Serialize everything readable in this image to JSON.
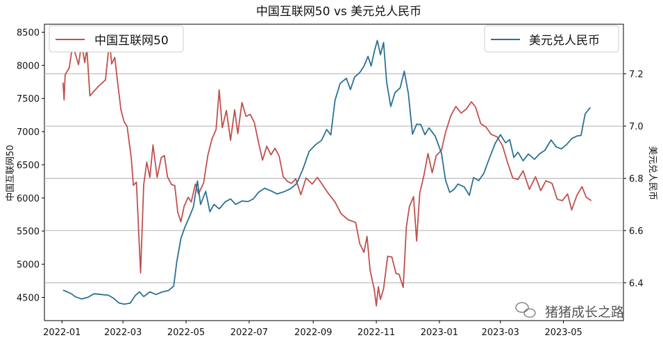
{
  "chart_data": {
    "type": "line",
    "title": "中国互联网50 vs 美元兑人民币",
    "xlabel": "",
    "ylabel_left": "中国互联网50",
    "ylabel_right": "美元兑人民币",
    "x_ticks": [
      "2022-01",
      "2022-03",
      "2022-05",
      "2022-07",
      "2022-09",
      "2022-11",
      "2023-01",
      "2023-03",
      "2023-05"
    ],
    "left_axis": {
      "ylim": [
        4150,
        8620
      ],
      "ticks": [
        4500,
        5000,
        5500,
        6000,
        6500,
        7000,
        7500,
        8000,
        8500
      ]
    },
    "right_axis": {
      "ylim": [
        6.255,
        7.39
      ],
      "ticks": [
        "6.4",
        "6.6",
        "6.8",
        "7.0",
        "7.2"
      ]
    },
    "grid": "horizontal lines at right-axis ticks",
    "legend": {
      "left_series": "top-left",
      "right_series": "top-right"
    },
    "watermark": "猪猪成长之路",
    "series": [
      {
        "name": "中国互联网50",
        "axis": "left",
        "color": "#c0504d",
        "points": [
          [
            "2022-01-02",
            7740
          ],
          [
            "2022-01-03",
            7480
          ],
          [
            "2022-01-04",
            7860
          ],
          [
            "2022-01-08",
            7960
          ],
          [
            "2022-01-11",
            8280
          ],
          [
            "2022-01-14",
            8170
          ],
          [
            "2022-01-17",
            8010
          ],
          [
            "2022-01-20",
            8330
          ],
          [
            "2022-01-23",
            8040
          ],
          [
            "2022-01-25",
            8250
          ],
          [
            "2022-01-28",
            7540
          ],
          [
            "2022-02-05",
            7680
          ],
          [
            "2022-02-12",
            7780
          ],
          [
            "2022-02-16",
            8380
          ],
          [
            "2022-02-18",
            8020
          ],
          [
            "2022-02-21",
            8120
          ],
          [
            "2022-02-24",
            7720
          ],
          [
            "2022-02-27",
            7330
          ],
          [
            "2022-03-02",
            7150
          ],
          [
            "2022-03-05",
            7080
          ],
          [
            "2022-03-09",
            6600
          ],
          [
            "2022-03-11",
            6190
          ],
          [
            "2022-03-14",
            6240
          ],
          [
            "2022-03-18",
            4870
          ],
          [
            "2022-03-21",
            6200
          ],
          [
            "2022-03-24",
            6540
          ],
          [
            "2022-03-27",
            6310
          ],
          [
            "2022-03-30",
            6800
          ],
          [
            "2022-04-03",
            6310
          ],
          [
            "2022-04-07",
            6610
          ],
          [
            "2022-04-10",
            6640
          ],
          [
            "2022-04-13",
            6320
          ],
          [
            "2022-04-17",
            6200
          ],
          [
            "2022-04-20",
            6190
          ],
          [
            "2022-04-23",
            5780
          ],
          [
            "2022-04-26",
            5640
          ],
          [
            "2022-04-29",
            5870
          ],
          [
            "2022-05-03",
            6010
          ],
          [
            "2022-05-06",
            5940
          ],
          [
            "2022-05-10",
            6210
          ],
          [
            "2022-05-13",
            6060
          ],
          [
            "2022-05-18",
            6230
          ],
          [
            "2022-05-22",
            6640
          ],
          [
            "2022-05-26",
            6890
          ],
          [
            "2022-05-30",
            7030
          ],
          [
            "2022-06-02",
            7630
          ],
          [
            "2022-06-05",
            7060
          ],
          [
            "2022-06-09",
            7320
          ],
          [
            "2022-06-13",
            6870
          ],
          [
            "2022-06-17",
            7330
          ],
          [
            "2022-06-20",
            6970
          ],
          [
            "2022-06-24",
            7440
          ],
          [
            "2022-06-28",
            7230
          ],
          [
            "2022-07-02",
            7260
          ],
          [
            "2022-07-06",
            7140
          ],
          [
            "2022-07-10",
            6840
          ],
          [
            "2022-07-14",
            6570
          ],
          [
            "2022-07-18",
            6780
          ],
          [
            "2022-07-22",
            6650
          ],
          [
            "2022-07-26",
            6750
          ],
          [
            "2022-07-30",
            6630
          ],
          [
            "2022-08-03",
            6320
          ],
          [
            "2022-08-07",
            6250
          ],
          [
            "2022-08-11",
            6220
          ],
          [
            "2022-08-15",
            6290
          ],
          [
            "2022-08-20",
            6050
          ],
          [
            "2022-08-25",
            6300
          ],
          [
            "2022-08-31",
            6210
          ],
          [
            "2022-09-05",
            6310
          ],
          [
            "2022-09-09",
            6220
          ],
          [
            "2022-09-15",
            6080
          ],
          [
            "2022-09-22",
            5940
          ],
          [
            "2022-09-28",
            5760
          ],
          [
            "2022-10-05",
            5670
          ],
          [
            "2022-10-12",
            5630
          ],
          [
            "2022-10-16",
            5310
          ],
          [
            "2022-10-20",
            5180
          ],
          [
            "2022-10-23",
            5420
          ],
          [
            "2022-10-26",
            4910
          ],
          [
            "2022-10-30",
            4620
          ],
          [
            "2022-11-01",
            4370
          ],
          [
            "2022-11-03",
            4660
          ],
          [
            "2022-11-05",
            4470
          ],
          [
            "2022-11-08",
            4630
          ],
          [
            "2022-11-12",
            5120
          ],
          [
            "2022-11-16",
            5110
          ],
          [
            "2022-11-20",
            4860
          ],
          [
            "2022-11-23",
            4850
          ],
          [
            "2022-11-27",
            4650
          ],
          [
            "2022-11-30",
            5560
          ],
          [
            "2022-12-03",
            5870
          ],
          [
            "2022-12-07",
            6020
          ],
          [
            "2022-12-10",
            5350
          ],
          [
            "2022-12-13",
            6070
          ],
          [
            "2022-12-17",
            6340
          ],
          [
            "2022-12-21",
            6670
          ],
          [
            "2022-12-25",
            6380
          ],
          [
            "2022-12-29",
            6640
          ],
          [
            "2023-01-03",
            6720
          ],
          [
            "2023-01-07",
            6990
          ],
          [
            "2023-01-12",
            7240
          ],
          [
            "2023-01-17",
            7380
          ],
          [
            "2023-01-22",
            7280
          ],
          [
            "2023-01-27",
            7340
          ],
          [
            "2023-02-01",
            7450
          ],
          [
            "2023-02-05",
            7370
          ],
          [
            "2023-02-10",
            7120
          ],
          [
            "2023-02-15",
            7070
          ],
          [
            "2023-02-20",
            6960
          ],
          [
            "2023-02-26",
            6920
          ],
          [
            "2023-03-03",
            6790
          ],
          [
            "2023-03-08",
            6530
          ],
          [
            "2023-03-13",
            6300
          ],
          [
            "2023-03-18",
            6280
          ],
          [
            "2023-03-23",
            6410
          ],
          [
            "2023-03-29",
            6130
          ],
          [
            "2023-04-04",
            6320
          ],
          [
            "2023-04-09",
            6110
          ],
          [
            "2023-04-14",
            6260
          ],
          [
            "2023-04-20",
            6220
          ],
          [
            "2023-04-25",
            5980
          ],
          [
            "2023-04-30",
            5960
          ],
          [
            "2023-05-05",
            6060
          ],
          [
            "2023-05-09",
            5820
          ],
          [
            "2023-05-14",
            6040
          ],
          [
            "2023-05-19",
            6170
          ],
          [
            "2023-05-23",
            6010
          ],
          [
            "2023-05-28",
            5960
          ]
        ]
      },
      {
        "name": "美元兑人民币",
        "axis": "right",
        "color": "#2a7193",
        "points": [
          [
            "2022-01-02",
            6.372
          ],
          [
            "2022-01-06",
            6.365
          ],
          [
            "2022-01-10",
            6.358
          ],
          [
            "2022-01-14",
            6.346
          ],
          [
            "2022-01-20",
            6.338
          ],
          [
            "2022-01-26",
            6.344
          ],
          [
            "2022-02-01",
            6.358
          ],
          [
            "2022-02-08",
            6.355
          ],
          [
            "2022-02-15",
            6.352
          ],
          [
            "2022-02-20",
            6.34
          ],
          [
            "2022-02-25",
            6.323
          ],
          [
            "2022-03-02",
            6.318
          ],
          [
            "2022-03-08",
            6.322
          ],
          [
            "2022-03-13",
            6.352
          ],
          [
            "2022-03-17",
            6.365
          ],
          [
            "2022-03-21",
            6.347
          ],
          [
            "2022-03-27",
            6.365
          ],
          [
            "2022-04-02",
            6.355
          ],
          [
            "2022-04-08",
            6.365
          ],
          [
            "2022-04-14",
            6.37
          ],
          [
            "2022-04-19",
            6.387
          ],
          [
            "2022-04-22",
            6.48
          ],
          [
            "2022-04-26",
            6.57
          ],
          [
            "2022-04-30",
            6.614
          ],
          [
            "2022-05-04",
            6.65
          ],
          [
            "2022-05-08",
            6.69
          ],
          [
            "2022-05-12",
            6.79
          ],
          [
            "2022-05-15",
            6.7
          ],
          [
            "2022-05-20",
            6.75
          ],
          [
            "2022-05-24",
            6.672
          ],
          [
            "2022-05-28",
            6.7
          ],
          [
            "2022-06-02",
            6.683
          ],
          [
            "2022-06-08",
            6.71
          ],
          [
            "2022-06-13",
            6.721
          ],
          [
            "2022-06-18",
            6.7
          ],
          [
            "2022-06-24",
            6.713
          ],
          [
            "2022-06-30",
            6.711
          ],
          [
            "2022-07-05",
            6.721
          ],
          [
            "2022-07-10",
            6.746
          ],
          [
            "2022-07-16",
            6.762
          ],
          [
            "2022-07-22",
            6.752
          ],
          [
            "2022-07-28",
            6.74
          ],
          [
            "2022-08-04",
            6.749
          ],
          [
            "2022-08-10",
            6.76
          ],
          [
            "2022-08-16",
            6.78
          ],
          [
            "2022-08-22",
            6.835
          ],
          [
            "2022-08-28",
            6.903
          ],
          [
            "2022-09-03",
            6.928
          ],
          [
            "2022-09-09",
            6.945
          ],
          [
            "2022-09-14",
            6.987
          ],
          [
            "2022-09-18",
            6.966
          ],
          [
            "2022-09-22",
            7.098
          ],
          [
            "2022-09-27",
            7.163
          ],
          [
            "2022-10-03",
            7.183
          ],
          [
            "2022-10-07",
            7.14
          ],
          [
            "2022-10-11",
            7.188
          ],
          [
            "2022-10-16",
            7.205
          ],
          [
            "2022-10-20",
            7.229
          ],
          [
            "2022-10-24",
            7.267
          ],
          [
            "2022-10-27",
            7.23
          ],
          [
            "2022-10-30",
            7.285
          ],
          [
            "2022-11-02",
            7.328
          ],
          [
            "2022-11-05",
            7.273
          ],
          [
            "2022-11-08",
            7.32
          ],
          [
            "2022-11-11",
            7.167
          ],
          [
            "2022-11-15",
            7.075
          ],
          [
            "2022-11-19",
            7.128
          ],
          [
            "2022-11-24",
            7.146
          ],
          [
            "2022-11-28",
            7.21
          ],
          [
            "2022-12-02",
            7.125
          ],
          [
            "2022-12-06",
            6.969
          ],
          [
            "2022-12-10",
            7.007
          ],
          [
            "2022-12-14",
            7.006
          ],
          [
            "2022-12-18",
            6.967
          ],
          [
            "2022-12-22",
            6.993
          ],
          [
            "2022-12-28",
            6.961
          ],
          [
            "2023-01-03",
            6.896
          ],
          [
            "2023-01-07",
            6.792
          ],
          [
            "2023-01-11",
            6.746
          ],
          [
            "2023-01-15",
            6.757
          ],
          [
            "2023-01-19",
            6.778
          ],
          [
            "2023-01-25",
            6.767
          ],
          [
            "2023-01-30",
            6.735
          ],
          [
            "2023-02-03",
            6.803
          ],
          [
            "2023-02-08",
            6.791
          ],
          [
            "2023-02-13",
            6.819
          ],
          [
            "2023-02-18",
            6.873
          ],
          [
            "2023-02-24",
            6.934
          ],
          [
            "2023-03-01",
            6.967
          ],
          [
            "2023-03-06",
            6.936
          ],
          [
            "2023-03-10",
            6.948
          ],
          [
            "2023-03-14",
            6.88
          ],
          [
            "2023-03-18",
            6.9
          ],
          [
            "2023-03-23",
            6.867
          ],
          [
            "2023-03-28",
            6.893
          ],
          [
            "2023-04-03",
            6.873
          ],
          [
            "2023-04-08",
            6.894
          ],
          [
            "2023-04-13",
            6.907
          ],
          [
            "2023-04-19",
            6.947
          ],
          [
            "2023-04-24",
            6.92
          ],
          [
            "2023-04-29",
            6.913
          ],
          [
            "2023-05-04",
            6.929
          ],
          [
            "2023-05-09",
            6.952
          ],
          [
            "2023-05-14",
            6.962
          ],
          [
            "2023-05-18",
            6.964
          ],
          [
            "2023-05-22",
            7.047
          ],
          [
            "2023-05-27",
            7.071
          ]
        ]
      }
    ]
  }
}
